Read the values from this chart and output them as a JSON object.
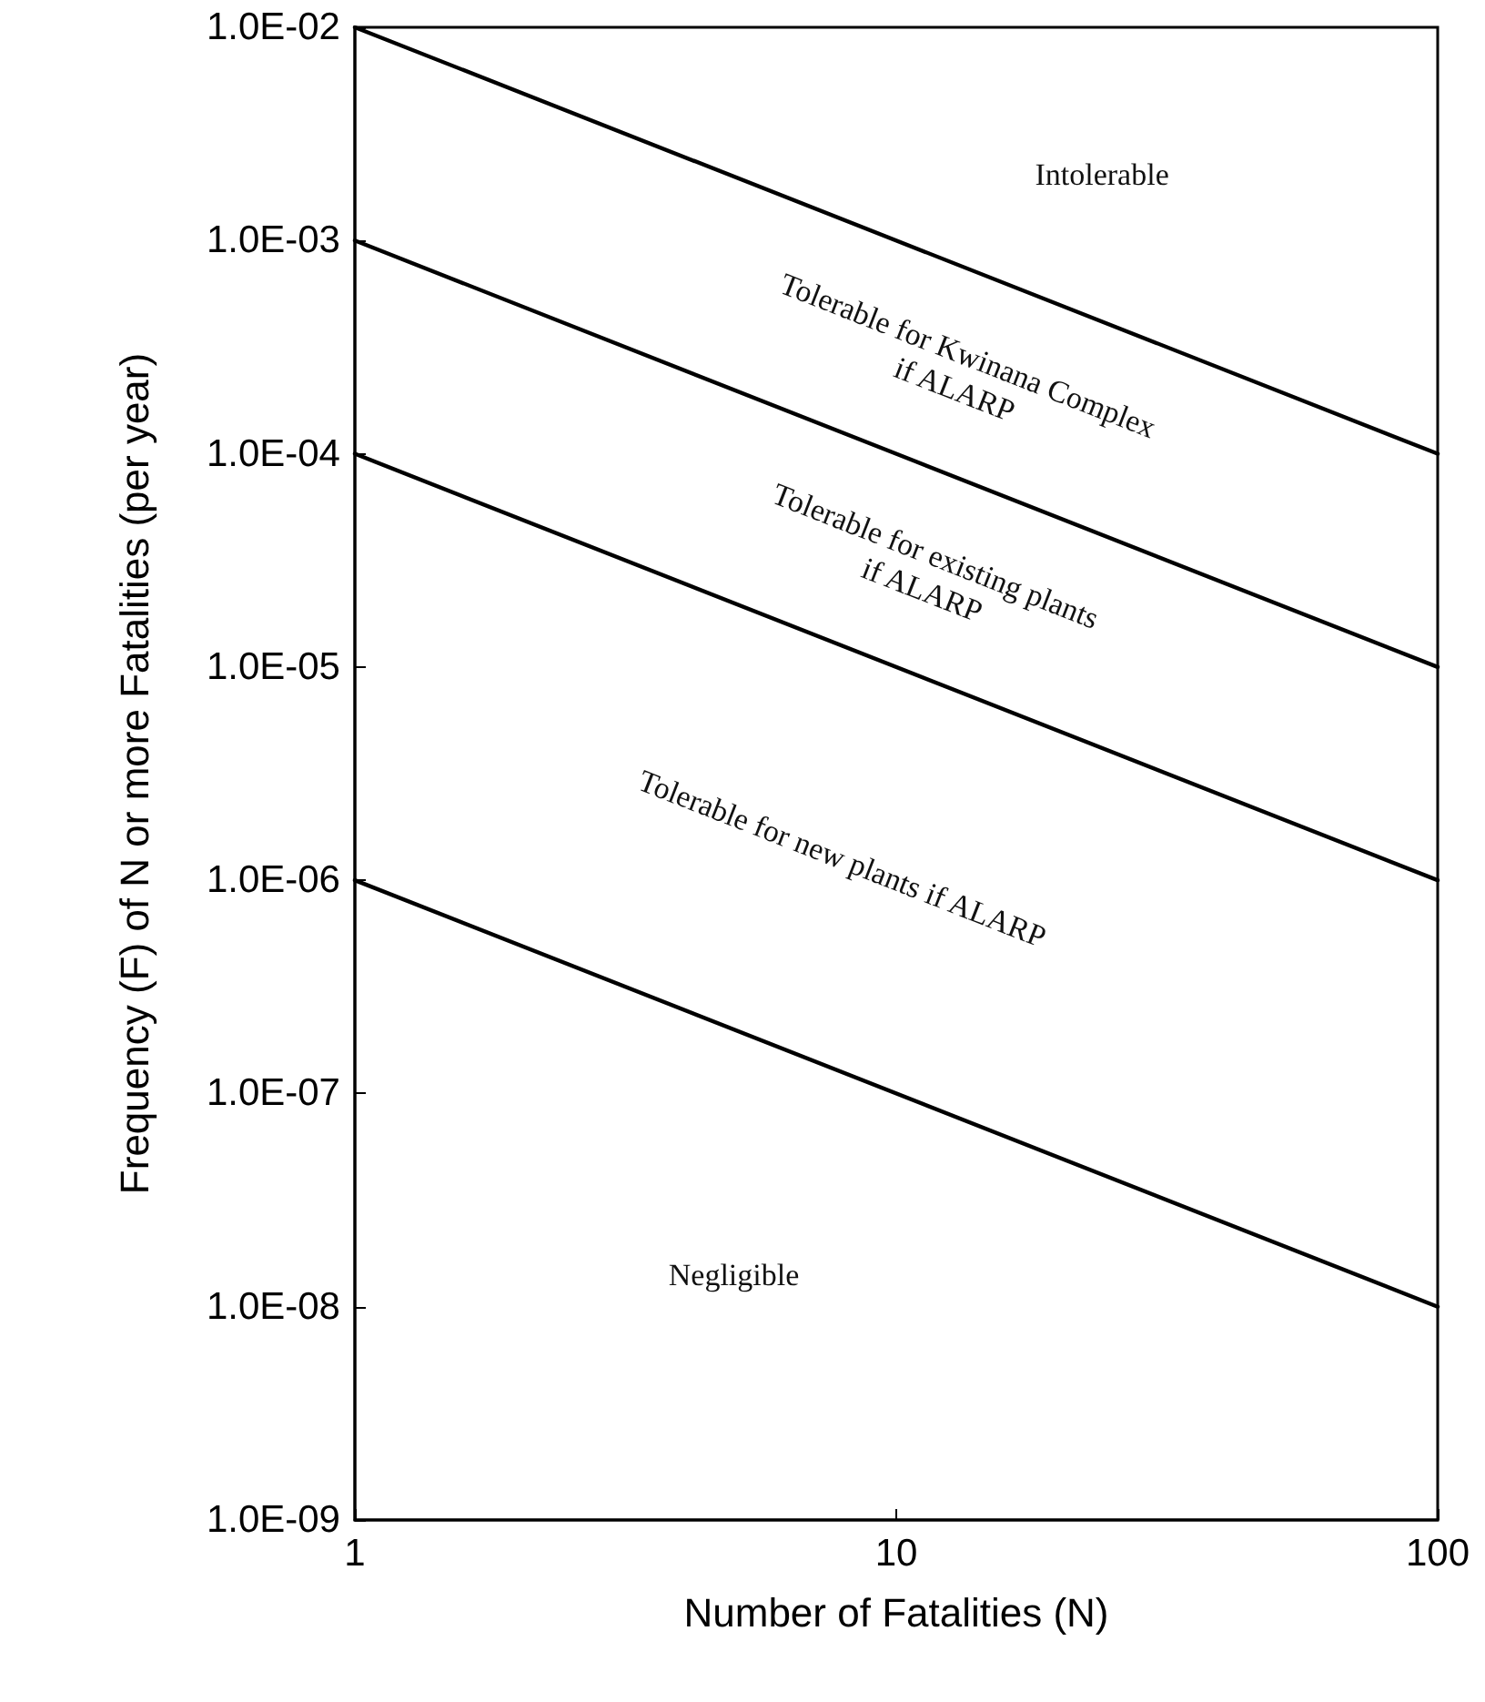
{
  "chart_data": {
    "type": "line",
    "xlabel": "Number of Fatalities (N)",
    "ylabel": "Frequency (F) of N or more Fatalities (per year)",
    "log": "xy",
    "grid": false,
    "marker": "none",
    "line_style": "solid",
    "xlim": [
      1,
      100
    ],
    "xticks": [
      1,
      10,
      100
    ],
    "ylim": [
      1e-09,
      0.01
    ],
    "yticks": [
      {
        "value": 1e-09,
        "label": "1.0E-09"
      },
      {
        "value": 1e-08,
        "label": "1.0E-08"
      },
      {
        "value": 1e-07,
        "label": "1.0E-07"
      },
      {
        "value": 1e-06,
        "label": "1.0E-06"
      },
      {
        "value": 1e-05,
        "label": "1.0E-05"
      },
      {
        "value": 0.0001,
        "label": "1.0E-04"
      },
      {
        "value": 0.001,
        "label": "1.0E-03"
      },
      {
        "value": 0.01,
        "label": "1.0E-02"
      }
    ],
    "x": [
      1,
      100
    ],
    "series": [
      {
        "color": "#000000",
        "values": [
          0.01,
          0.0001
        ]
      },
      {
        "color": "#000000",
        "values": [
          0.001,
          1e-05
        ]
      },
      {
        "color": "#000000",
        "values": [
          0.0001,
          1e-06
        ]
      },
      {
        "color": "#000000",
        "values": [
          1e-06,
          1e-08
        ]
      }
    ],
    "annotations": [
      "Intolerable",
      "Tolerable for Kwinana Complex\nif ALARP",
      "Tolerable for existing plants\nif ALARP",
      "Tolerable for new plants if ALARP",
      "Negligible"
    ]
  }
}
